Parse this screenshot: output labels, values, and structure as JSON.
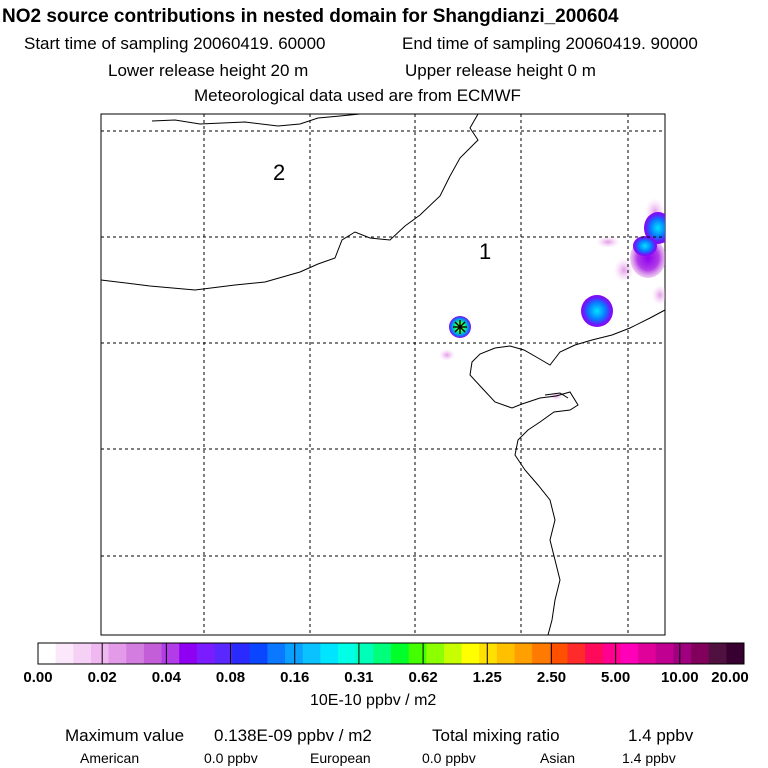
{
  "title": "NO2 source contributions in nested domain for Shangdianzi_200604",
  "start_label": "Start time of sampling 20060419. 60000",
  "end_label": "End time of sampling 20060419. 90000",
  "lower_label": "Lower release height   20 m",
  "upper_label": "Upper release height    0 m",
  "met_label": "Meteorological data used are from ECMWF",
  "colorbar": {
    "unit": "10E-10 ppbv / m2",
    "tick_labels": [
      "0.00",
      "0.02",
      "0.04",
      "0.08",
      "0.16",
      "0.31",
      "0.62",
      "1.25",
      "2.50",
      "5.00",
      "10.00",
      "20.00"
    ],
    "colors": [
      "#ffffff",
      "#fbe8fb",
      "#f6d1f6",
      "#f0b8f0",
      "#e39ae8",
      "#d47de0",
      "#c45ed8",
      "#b23ce8",
      "#8f00f2",
      "#7a1cff",
      "#5a28ff",
      "#2a2aff",
      "#0a46ff",
      "#0a78ff",
      "#0aa0ff",
      "#0ac2ff",
      "#00e5ff",
      "#00ffe6",
      "#00ffb8",
      "#00ff7a",
      "#00ff2a",
      "#44ff00",
      "#8cff00",
      "#c8ff00",
      "#ffff00",
      "#ffe000",
      "#ffc000",
      "#ffa000",
      "#ff7a00",
      "#ff5000",
      "#ff2a2a",
      "#ff0a5a",
      "#ff0090",
      "#ff00b8",
      "#e0009a",
      "#c00090",
      "#a00080",
      "#80005c",
      "#501040",
      "#380030"
    ]
  },
  "map_labels": {
    "region_1": "1",
    "region_2": "2"
  },
  "footer": {
    "max_label": "Maximum value",
    "max_value": "0.138E-09 ppbv / m2",
    "total_label": "Total mixing ratio",
    "total_value": "1.4 ppbv",
    "american_label": "American",
    "american_value": "0.0 ppbv",
    "european_label": "European",
    "european_value": "0.0 ppbv",
    "asian_label": "Asian",
    "asian_value": "1.4 ppbv"
  },
  "chart_data": {
    "type": "heatmap",
    "title": "NO2 source contributions in nested domain for Shangdianzi_200604",
    "color_scale_levels": [
      0.0,
      0.02,
      0.04,
      0.08,
      0.16,
      0.31,
      0.62,
      1.25,
      2.5,
      5.0,
      10.0,
      20.0
    ],
    "unit": "10E-10 ppbv / m2",
    "max_value": "0.138E-09 ppbv / m2"
  }
}
